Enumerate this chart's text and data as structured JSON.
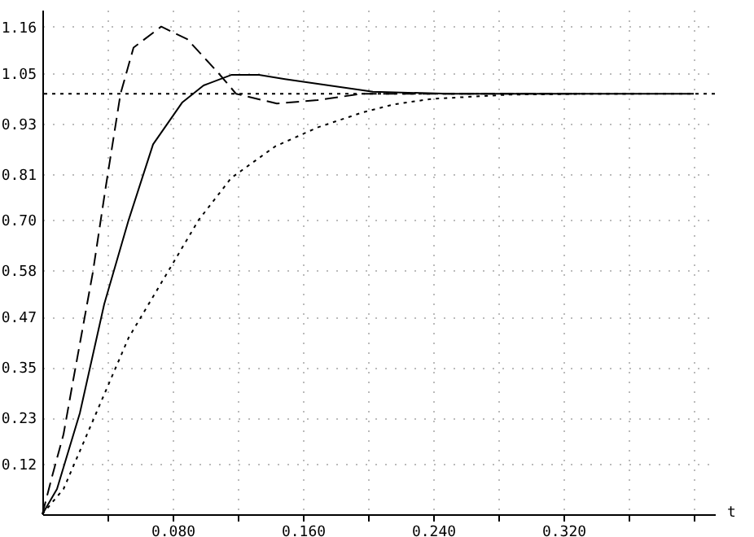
{
  "chart_data": {
    "type": "line",
    "xlabel": "t",
    "xlim": [
      0,
      0.413
    ],
    "ylim": [
      0,
      1.2
    ],
    "xticks": [
      {
        "value": 0.04,
        "label": null
      },
      {
        "value": 0.08,
        "label": "0.080"
      },
      {
        "value": 0.12,
        "label": null
      },
      {
        "value": 0.16,
        "label": "0.160"
      },
      {
        "value": 0.2,
        "label": null
      },
      {
        "value": 0.24,
        "label": "0.240"
      },
      {
        "value": 0.28,
        "label": null
      },
      {
        "value": 0.32,
        "label": "0.320"
      },
      {
        "value": 0.36,
        "label": null
      },
      {
        "value": 0.4,
        "label": null
      }
    ],
    "yticks": [
      0.12,
      0.23,
      0.35,
      0.47,
      0.58,
      {
        "value": 0.7,
        "label": "0.70"
      },
      0.81,
      0.93,
      1.05,
      1.16
    ],
    "grid": true,
    "ref_lines": [
      {
        "axis": "y",
        "value": 1.0,
        "line_style": "dotted",
        "color": "#000000"
      }
    ],
    "series": [
      {
        "color": "#000000",
        "line_style": "dashed",
        "x": [
          0,
          0.006,
          0.013,
          0.019,
          0.031,
          0.039,
          0.048,
          0.056,
          0.073,
          0.089,
          0.108,
          0.119,
          0.144,
          0.169,
          0.196,
          0.25,
          0.33
        ],
        "values": [
          0,
          0.09,
          0.19,
          0.32,
          0.575,
          0.78,
          1.0,
          1.11,
          1.16,
          1.13,
          1.05,
          1.0,
          0.977,
          0.985,
          1.0,
          1.0,
          1.0
        ]
      },
      {
        "color": "#000000",
        "line_style": "solid",
        "x": [
          0,
          0.009,
          0.023,
          0.038,
          0.053,
          0.068,
          0.086,
          0.099,
          0.116,
          0.133,
          0.149,
          0.176,
          0.203,
          0.25,
          0.3,
          0.4
        ],
        "values": [
          0,
          0.06,
          0.24,
          0.5,
          0.7,
          0.88,
          0.98,
          1.02,
          1.045,
          1.045,
          1.035,
          1.02,
          1.005,
          1.0,
          1.0,
          1.0
        ]
      },
      {
        "color": "#000000",
        "line_style": "dotted",
        "x": [
          0,
          0.013,
          0.033,
          0.053,
          0.073,
          0.096,
          0.116,
          0.143,
          0.169,
          0.196,
          0.216,
          0.239,
          0.286,
          0.33,
          0.366
        ],
        "values": [
          0,
          0.06,
          0.24,
          0.42,
          0.55,
          0.7,
          0.8,
          0.875,
          0.92,
          0.955,
          0.975,
          0.988,
          0.998,
          1.0,
          1.0
        ]
      }
    ]
  }
}
